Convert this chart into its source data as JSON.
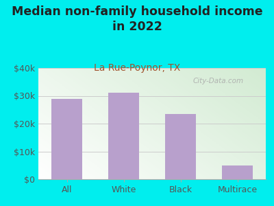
{
  "title": "Median non-family household income\nin 2022",
  "subtitle": "La Rue-Poynor, TX",
  "categories": [
    "All",
    "White",
    "Black",
    "Multirace"
  ],
  "values": [
    28800,
    31200,
    23500,
    5000
  ],
  "bar_color": "#b8a0cc",
  "background_color": "#00EEEE",
  "title_color": "#222222",
  "subtitle_color": "#a0522d",
  "axis_label_color": "#555555",
  "ylim": [
    0,
    40000
  ],
  "yticks": [
    0,
    10000,
    20000,
    30000,
    40000
  ],
  "ytick_labels": [
    "$0",
    "$10k",
    "$20k",
    "$30k",
    "$40k"
  ],
  "title_fontsize": 12.5,
  "subtitle_fontsize": 10,
  "tick_fontsize": 9,
  "watermark": "City-Data.com",
  "grid_color": "#cccccc"
}
